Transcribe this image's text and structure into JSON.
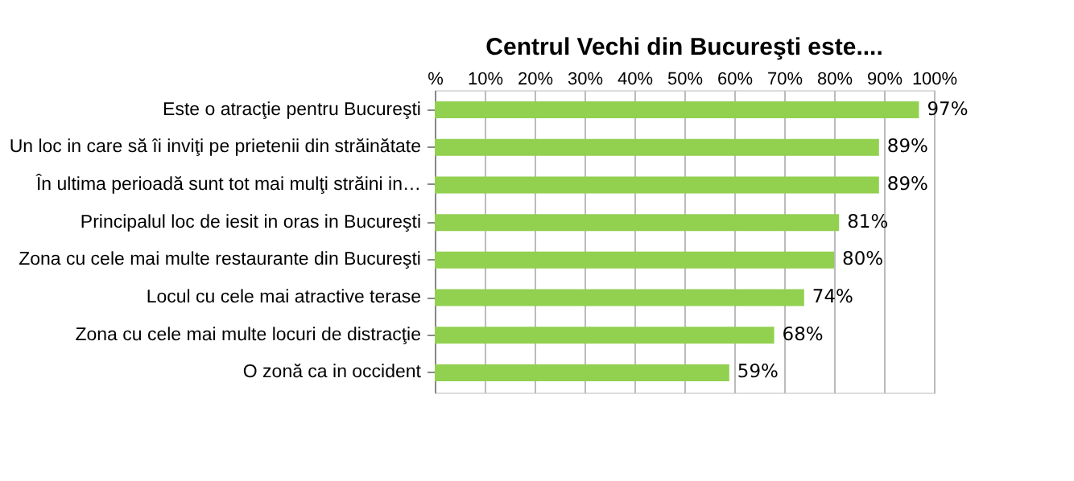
{
  "chart_data": {
    "type": "bar",
    "orientation": "horizontal",
    "title": "Centrul Vechi din Bucureşti este....",
    "categories": [
      "Este o atracţie pentru Bucureşti",
      "Un loc in care să îi inviţi pe prietenii din străinătate",
      "În ultima perioadă sunt tot mai mulţi străini in…",
      "Principalul loc de iesit in oras in Bucureşti",
      "Zona cu cele mai multe restaurante din Bucureşti",
      "Locul cu cele mai atractive terase",
      "Zona cu cele mai multe locuri de distracţie",
      "O zonă ca in occident"
    ],
    "values": [
      97,
      89,
      89,
      81,
      80,
      74,
      68,
      59
    ],
    "value_labels": [
      "97%",
      "89%",
      "89%",
      "81%",
      "80%",
      "74%",
      "68%",
      "59%"
    ],
    "color": "#92d050",
    "xlim": [
      0,
      100
    ],
    "xticks": [
      {
        "value": 0,
        "label": "%"
      },
      {
        "value": 10,
        "label": "10%"
      },
      {
        "value": 20,
        "label": "20%"
      },
      {
        "value": 30,
        "label": "30%"
      },
      {
        "value": 40,
        "label": "40%"
      },
      {
        "value": 50,
        "label": "50%"
      },
      {
        "value": 60,
        "label": "60%"
      },
      {
        "value": 70,
        "label": "70%"
      },
      {
        "value": 80,
        "label": "80%"
      },
      {
        "value": 90,
        "label": "90%"
      },
      {
        "value": 100,
        "label": "100%"
      }
    ],
    "grid": "x"
  }
}
